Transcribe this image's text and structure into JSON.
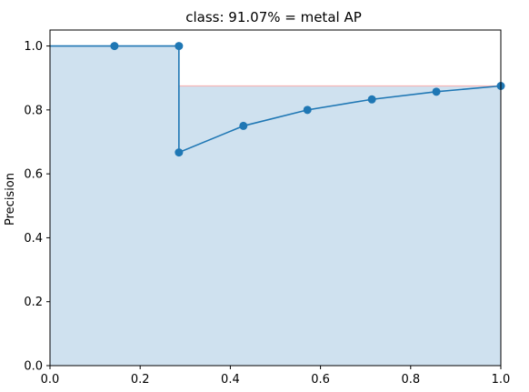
{
  "chart_data": {
    "type": "area",
    "title": "class: 91.07% = metal AP",
    "xlabel": "",
    "ylabel": "Precision",
    "xlim": [
      0.0,
      1.0
    ],
    "ylim": [
      0.0,
      1.05
    ],
    "xticks": [
      "0.0",
      "0.2",
      "0.4",
      "0.6",
      "0.8",
      "1.0"
    ],
    "yticks": [
      "0.0",
      "0.2",
      "0.4",
      "0.6",
      "0.8",
      "1.0"
    ],
    "grid": false,
    "series": [
      {
        "type": "line-markers",
        "x": [
          0.0,
          0.143,
          0.286,
          0.286,
          0.429,
          0.571,
          0.714,
          0.857,
          1.0
        ],
        "y": [
          1.0,
          1.0,
          1.0,
          0.667,
          0.75,
          0.8,
          0.833,
          0.857,
          0.875
        ],
        "markers": [
          false,
          true,
          true,
          true,
          true,
          true,
          true,
          true,
          true
        ],
        "color": "#1f77b4"
      },
      {
        "type": "interpolated-area",
        "x": [
          0.0,
          0.286,
          0.286,
          1.0
        ],
        "y": [
          1.0,
          1.0,
          0.875,
          0.875
        ],
        "fill_color": "#cfe1ef",
        "edge_color": "#f5b5b5"
      }
    ]
  }
}
